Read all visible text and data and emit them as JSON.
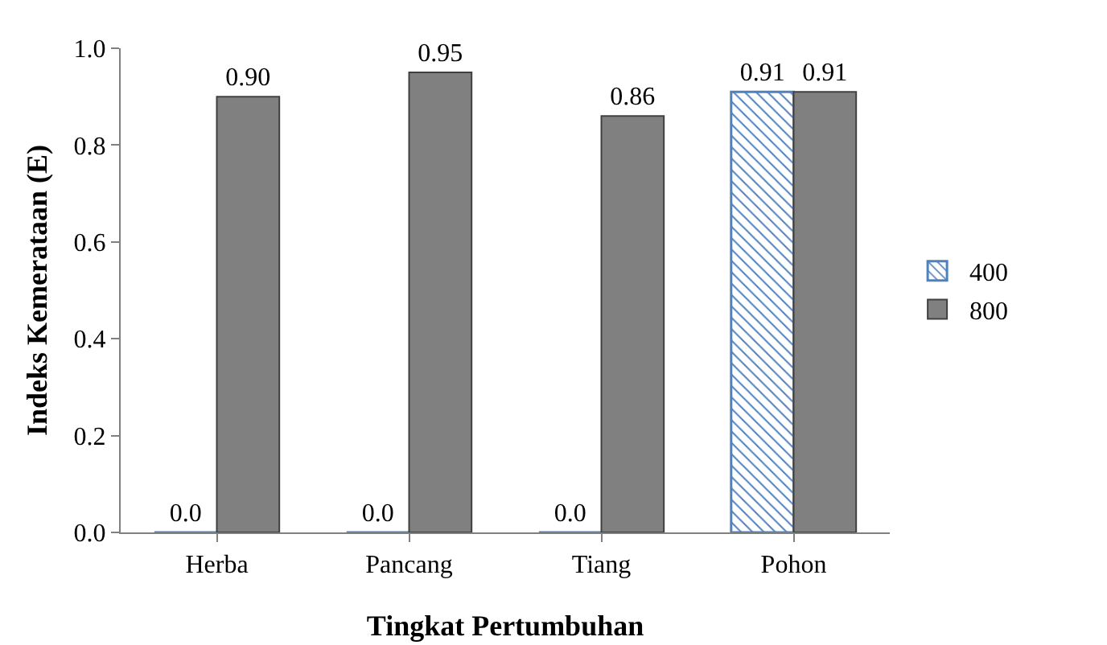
{
  "chart_data": {
    "type": "bar",
    "xlabel": "Tingkat Pertumbuhan",
    "ylabel": "Indeks Kemerataan (E)",
    "categories": [
      "Herba",
      "Pancang",
      "Tiang",
      "Pohon"
    ],
    "series": [
      {
        "name": "400",
        "color": "#4f81bd",
        "values": [
          0.0,
          0.0,
          0.0,
          0.91
        ],
        "value_labels": [
          "0.0",
          "0.0",
          "0.0",
          "0.91"
        ]
      },
      {
        "name": "800",
        "color": "#808080",
        "values": [
          0.9,
          0.95,
          0.86,
          0.91
        ],
        "value_labels": [
          "0.90",
          "0.95",
          "0.86",
          "0.91"
        ]
      }
    ],
    "ylim": [
      0,
      1
    ],
    "yticks": [
      {
        "value": 0,
        "label": "0.0"
      },
      {
        "value": 0.2,
        "label": "0.2"
      },
      {
        "value": 0.4,
        "label": "0.4"
      },
      {
        "value": 0.6,
        "label": "0.6"
      },
      {
        "value": 0.8,
        "label": "0.8"
      },
      {
        "value": 1,
        "label": "1.0"
      }
    ],
    "grid": false,
    "legend": "right"
  }
}
